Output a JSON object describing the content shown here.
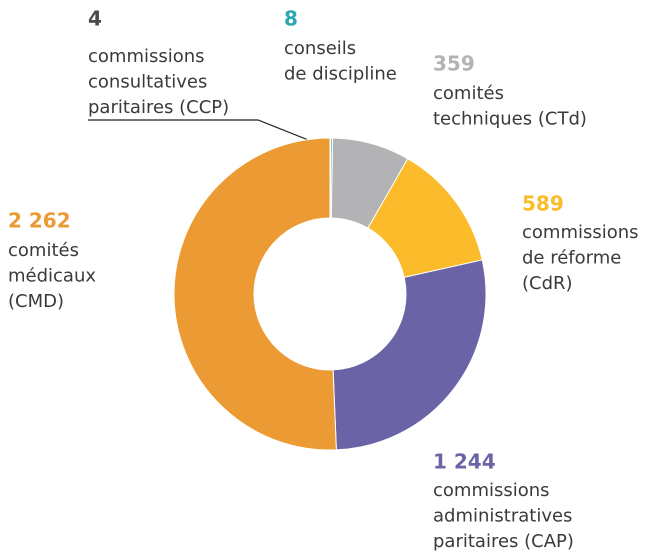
{
  "chart_data": {
    "type": "donut",
    "categories": [
      [
        "commissions",
        "consultatives",
        "paritaires (CCP)"
      ],
      [
        "conseils",
        "de discipline"
      ],
      [
        "comités",
        "techniques (CTd)"
      ],
      [
        "commissions",
        "de réforme",
        "(CdR)"
      ],
      [
        "commissions",
        "administratives",
        "paritaires (CAP)"
      ],
      [
        "comités",
        "médicaux",
        "(CMD)"
      ]
    ],
    "values": [
      4,
      8,
      359,
      589,
      1244,
      2262
    ],
    "value_labels": [
      "4",
      "8",
      "359",
      "589",
      "1 244",
      "2 262"
    ],
    "colors": [
      "#4a4a4a",
      "#2aa8b0",
      "#b3b3b5",
      "#fbbb2a",
      "#6a64a6",
      "#ec9a33"
    ]
  }
}
